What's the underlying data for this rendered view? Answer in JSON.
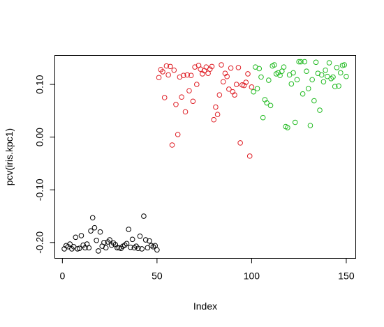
{
  "chart_data": {
    "type": "scatter",
    "title": "",
    "xlabel": "Index",
    "ylabel": "pcv(iris.kpc1)",
    "xlim": [
      -4,
      155
    ],
    "ylim": [
      -0.23,
      0.155
    ],
    "grid": false,
    "marker": "open-circle",
    "x_ticks": [
      0,
      50,
      100,
      150
    ],
    "x_tick_labels": [
      "0",
      "50",
      "100",
      "150"
    ],
    "y_ticks": [
      -0.2,
      -0.1,
      0.0,
      0.1
    ],
    "y_tick_labels": [
      "-0.20",
      "-0.10",
      "0.00",
      "0.10"
    ],
    "series": [
      {
        "color": "#000000",
        "x": [
          1,
          2,
          3,
          4,
          5,
          6,
          7,
          8,
          9,
          10,
          11,
          12,
          13,
          14,
          15,
          16,
          17,
          18,
          19,
          20,
          21,
          22,
          23,
          24,
          25,
          26,
          27,
          28,
          29,
          30,
          31,
          32,
          33,
          34,
          35,
          36,
          37,
          38,
          39,
          40,
          41,
          42,
          43,
          44,
          45,
          46,
          47,
          48,
          49,
          50
        ],
        "y": [
          -0.212,
          -0.206,
          -0.208,
          -0.203,
          -0.212,
          -0.208,
          -0.19,
          -0.212,
          -0.211,
          -0.187,
          -0.205,
          -0.21,
          -0.203,
          -0.21,
          -0.178,
          -0.153,
          -0.172,
          -0.196,
          -0.216,
          -0.18,
          -0.207,
          -0.2,
          -0.21,
          -0.199,
          -0.195,
          -0.205,
          -0.201,
          -0.204,
          -0.21,
          -0.21,
          -0.211,
          -0.207,
          -0.205,
          -0.202,
          -0.175,
          -0.209,
          -0.194,
          -0.21,
          -0.207,
          -0.211,
          -0.188,
          -0.212,
          -0.15,
          -0.195,
          -0.21,
          -0.197,
          -0.206,
          -0.208,
          -0.206,
          -0.214
        ]
      },
      {
        "color": "#df1f26",
        "x": [
          51,
          52,
          53,
          54,
          55,
          56,
          57,
          58,
          59,
          60,
          61,
          62,
          63,
          64,
          65,
          66,
          67,
          68,
          69,
          70,
          71,
          72,
          73,
          74,
          75,
          76,
          77,
          78,
          79,
          80,
          81,
          82,
          83,
          84,
          85,
          86,
          87,
          88,
          89,
          90,
          91,
          92,
          93,
          94,
          95,
          96,
          97,
          98,
          99,
          100
        ],
        "y": [
          0.113,
          0.128,
          0.124,
          0.075,
          0.135,
          0.118,
          0.134,
          -0.015,
          0.127,
          0.062,
          0.005,
          0.114,
          0.076,
          0.117,
          0.048,
          0.118,
          0.088,
          0.117,
          0.068,
          0.133,
          0.1,
          0.136,
          0.129,
          0.12,
          0.126,
          0.133,
          0.121,
          0.129,
          0.134,
          0.033,
          0.057,
          0.043,
          0.08,
          0.137,
          0.105,
          0.121,
          0.115,
          0.091,
          0.131,
          0.086,
          0.08,
          0.1,
          0.132,
          -0.011,
          0.099,
          0.098,
          0.104,
          0.12,
          -0.036,
          0.095
        ]
      },
      {
        "color": "#22bb22",
        "x": [
          101,
          102,
          103,
          104,
          105,
          106,
          107,
          108,
          109,
          110,
          111,
          112,
          113,
          114,
          115,
          116,
          117,
          118,
          119,
          120,
          121,
          122,
          123,
          124,
          125,
          126,
          127,
          128,
          129,
          130,
          131,
          132,
          133,
          134,
          135,
          136,
          137,
          138,
          139,
          140,
          141,
          142,
          143,
          144,
          145,
          146,
          147,
          148,
          149,
          150
        ],
        "y": [
          0.086,
          0.133,
          0.092,
          0.13,
          0.114,
          0.037,
          0.071,
          0.065,
          0.108,
          0.06,
          0.135,
          0.137,
          0.12,
          0.122,
          0.117,
          0.125,
          0.133,
          0.02,
          0.018,
          0.118,
          0.101,
          0.122,
          0.028,
          0.109,
          0.143,
          0.143,
          0.082,
          0.143,
          0.125,
          0.092,
          0.022,
          0.109,
          0.069,
          0.142,
          0.121,
          0.051,
          0.118,
          0.105,
          0.127,
          0.115,
          0.141,
          0.111,
          0.114,
          0.096,
          0.132,
          0.097,
          0.122,
          0.136,
          0.137,
          0.115
        ]
      }
    ]
  }
}
